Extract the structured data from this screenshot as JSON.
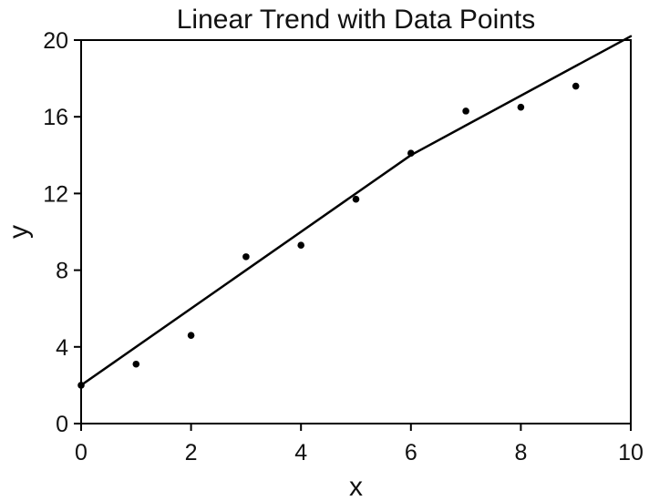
{
  "chart_data": {
    "type": "scatter",
    "title": "Linear Trend with Data Points",
    "xlabel": "x",
    "ylabel": "y",
    "xlim": [
      0,
      10
    ],
    "ylim": [
      0,
      20
    ],
    "x_ticks": [
      0,
      2,
      4,
      6,
      8,
      10
    ],
    "y_ticks": [
      0,
      4,
      8,
      12,
      16,
      20
    ],
    "grid": false,
    "legend": "none",
    "colors": {
      "points": "#000000",
      "line": "#000000",
      "axes": "#000000"
    },
    "series": [
      {
        "type": "scatter",
        "x": [
          0,
          1,
          2,
          3,
          4,
          5,
          6,
          7,
          8,
          9
        ],
        "y": [
          2.0,
          3.1,
          4.6,
          8.7,
          9.3,
          11.7,
          14.1,
          16.3,
          16.5,
          17.6
        ]
      },
      {
        "type": "line",
        "x": [
          0,
          6,
          10
        ],
        "y": [
          2.0,
          14.0,
          20.2
        ]
      }
    ]
  }
}
